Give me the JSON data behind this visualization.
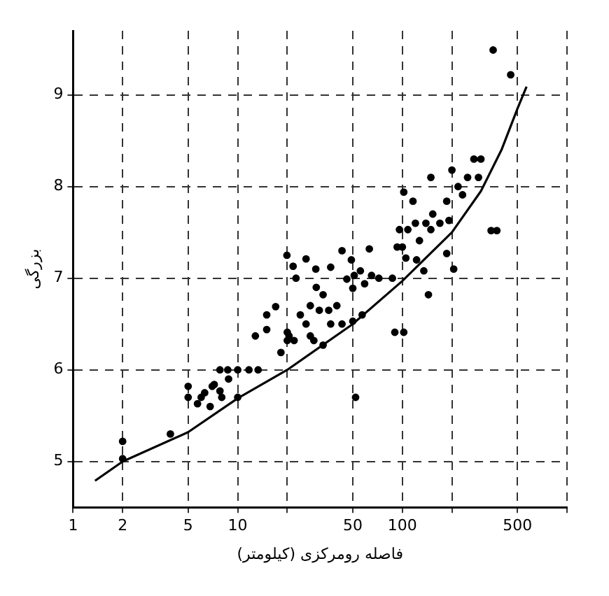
{
  "chart_data": {
    "type": "scatter",
    "xlabel": "فاصله رومرکزی (کیلومتر)",
    "ylabel": "بزرگی",
    "log": "x",
    "grid": true,
    "line_style": "dashed",
    "xlim": [
      1,
      1000
    ],
    "ylim": [
      4.5,
      9.7
    ],
    "xticks": [
      1,
      2,
      5,
      10,
      {
        "value": 20,
        "label": null
      },
      50,
      100,
      {
        "value": 200,
        "label": null
      },
      500,
      {
        "value": 1000,
        "label": null
      }
    ],
    "yticks": [
      5,
      6,
      7,
      8,
      9
    ],
    "series": [
      {
        "type": "scatter",
        "marker": "circle",
        "color": "#000000",
        "x": [
          2,
          2,
          3.9,
          5,
          5,
          5.7,
          6,
          6.3,
          6.8,
          7,
          7.2,
          7.8,
          8,
          8.8,
          7.8,
          8.7,
          10,
          10,
          11.7,
          13.3,
          12.8,
          15,
          15,
          17,
          18.3,
          20,
          20,
          20.5,
          22,
          21.7,
          19.9,
          22.6,
          26,
          24,
          26,
          27.6,
          29.8,
          30,
          31.3,
          33,
          36.7,
          35.7,
          36.7,
          40,
          43,
          43,
          46,
          49,
          50,
          51,
          55.6,
          59,
          63,
          65,
          72,
          57,
          50,
          27.6,
          33,
          29,
          87,
          93,
          96,
          100,
          102,
          105,
          108,
          116,
          120,
          122,
          127,
          135,
          139,
          149,
          149,
          153,
          169,
          186,
          186,
          192,
          200,
          218,
          232,
          249,
          272,
          290,
          300,
          346,
          375,
          356,
          455,
          144,
          205,
          90,
          102,
          52
        ],
        "values": [
          5.22,
          5.03,
          5.3,
          5.82,
          5.7,
          5.63,
          5.7,
          5.75,
          5.6,
          5.82,
          5.84,
          5.77,
          5.7,
          5.9,
          6.0,
          6.0,
          6.0,
          5.7,
          6.0,
          6.0,
          6.37,
          6.44,
          6.6,
          6.69,
          6.19,
          6.41,
          6.32,
          6.37,
          6.32,
          7.13,
          7.25,
          7.0,
          7.21,
          6.6,
          6.5,
          6.7,
          7.1,
          6.9,
          6.65,
          6.82,
          7.12,
          6.65,
          6.5,
          6.7,
          7.3,
          6.5,
          6.99,
          7.2,
          6.89,
          7.03,
          7.08,
          6.94,
          7.32,
          7.03,
          7.0,
          6.6,
          6.53,
          6.37,
          6.27,
          6.32,
          7.0,
          7.34,
          7.53,
          7.34,
          7.94,
          7.22,
          7.53,
          7.84,
          7.6,
          7.2,
          7.41,
          7.08,
          7.6,
          7.53,
          8.1,
          7.7,
          7.6,
          7.27,
          7.84,
          7.63,
          8.18,
          8.0,
          7.91,
          8.1,
          8.3,
          8.1,
          8.3,
          7.52,
          7.52,
          9.49,
          9.22,
          6.82,
          7.1,
          6.41,
          6.41,
          5.7
        ]
      },
      {
        "type": "line",
        "marker": "none",
        "line_style": "solid",
        "color": "#000000",
        "x": [
          1.36,
          2,
          5,
          10,
          20,
          50,
          100,
          200,
          300,
          400,
          500,
          568
        ],
        "values": [
          4.79,
          5.0,
          5.32,
          5.69,
          6.0,
          6.5,
          6.97,
          7.5,
          7.95,
          8.4,
          8.85,
          9.09
        ]
      }
    ]
  }
}
